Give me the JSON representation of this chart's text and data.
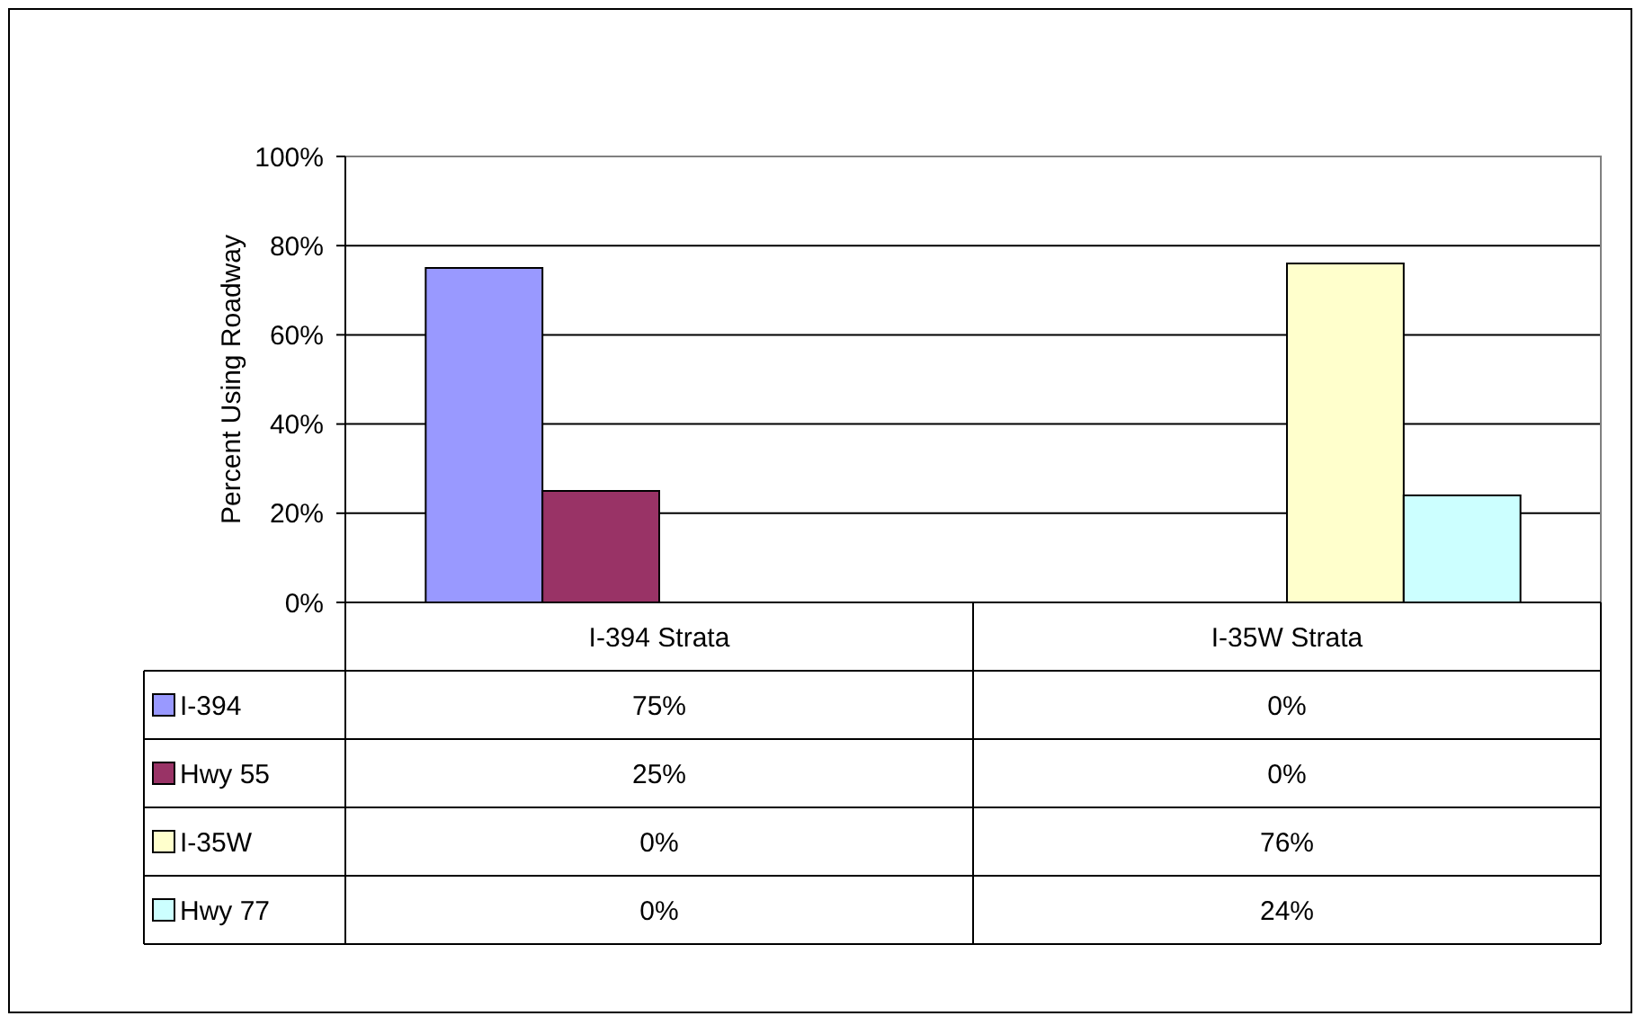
{
  "chart_data": {
    "type": "bar",
    "ylabel": "Percent Using Roadway",
    "categories": [
      "I-394 Strata",
      "I-35W Strata"
    ],
    "series": [
      {
        "name": "I-394",
        "color": "#9999ff",
        "values": [
          75,
          0
        ],
        "value_labels": [
          "75%",
          "0%"
        ]
      },
      {
        "name": "Hwy 55",
        "color": "#993366",
        "values": [
          25,
          0
        ],
        "value_labels": [
          "25%",
          "0%"
        ]
      },
      {
        "name": "I-35W",
        "color": "#ffffcc",
        "values": [
          0,
          76
        ],
        "value_labels": [
          "0%",
          "76%"
        ]
      },
      {
        "name": "Hwy 77",
        "color": "#ccffff",
        "values": [
          0,
          24
        ],
        "value_labels": [
          "0%",
          "24%"
        ]
      }
    ],
    "ylim": [
      0,
      100
    ],
    "yticks": [
      {
        "value": 0,
        "label": "0%"
      },
      {
        "value": 20,
        "label": "20%"
      },
      {
        "value": 40,
        "label": "40%"
      },
      {
        "value": 60,
        "label": "60%"
      },
      {
        "value": 80,
        "label": "80%"
      },
      {
        "value": 100,
        "label": "100%"
      }
    ],
    "grid": "y",
    "legend": "bottom"
  }
}
